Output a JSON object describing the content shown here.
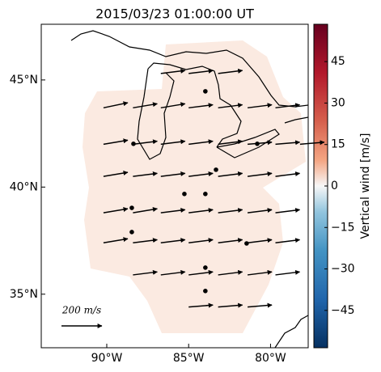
{
  "chart_data": {
    "type": "vector-map",
    "title": "2015/03/23 01:00:00 UT",
    "xlim": [
      -94,
      -77.7
    ],
    "ylim": [
      32.5,
      47.6
    ],
    "xticks": [
      {
        "value": -90,
        "label": "90°W"
      },
      {
        "value": -85,
        "label": "85°W"
      },
      {
        "value": -80,
        "label": "80°W"
      }
    ],
    "yticks": [
      {
        "value": 35,
        "label": "35°N"
      },
      {
        "value": 40,
        "label": "40°N"
      },
      {
        "value": 45,
        "label": "45°N"
      }
    ],
    "vectors": {
      "color": "#000000",
      "lon": [
        -86.7,
        -85.0,
        -83.2,
        -90.2,
        -88.4,
        -86.7,
        -85.0,
        -83.2,
        -81.4,
        -79.7,
        -90.2,
        -88.4,
        -86.7,
        -85.0,
        -83.2,
        -81.4,
        -79.7,
        -78.2,
        -90.2,
        -88.4,
        -86.7,
        -85.0,
        -83.2,
        -81.4,
        -79.7,
        -90.2,
        -88.4,
        -86.7,
        -85.0,
        -83.2,
        -81.4,
        -79.7,
        -90.2,
        -88.4,
        -86.7,
        -85.0,
        -83.2,
        -81.4,
        -79.7,
        -88.4,
        -86.7,
        -85.0,
        -83.2,
        -81.4,
        -79.7,
        -85.0,
        -83.2,
        -81.4
      ],
      "lat": [
        45.3,
        45.3,
        45.3,
        43.7,
        43.7,
        43.7,
        43.7,
        43.7,
        43.7,
        43.7,
        42.0,
        42.0,
        42.0,
        42.0,
        42.0,
        42.0,
        42.0,
        42.0,
        40.5,
        40.5,
        40.5,
        40.5,
        40.5,
        40.5,
        40.5,
        38.8,
        38.8,
        38.8,
        38.8,
        38.8,
        38.8,
        38.8,
        37.4,
        37.4,
        37.4,
        37.4,
        37.4,
        37.4,
        37.4,
        35.9,
        35.9,
        35.9,
        35.9,
        35.9,
        35.9,
        34.4,
        34.4,
        34.4
      ],
      "u": [
        120,
        120,
        120,
        120,
        120,
        120,
        120,
        120,
        120,
        120,
        120,
        120,
        120,
        120,
        120,
        120,
        120,
        120,
        120,
        120,
        120,
        120,
        120,
        120,
        120,
        120,
        120,
        120,
        120,
        120,
        120,
        120,
        120,
        120,
        120,
        120,
        120,
        120,
        120,
        120,
        120,
        120,
        120,
        120,
        120,
        120,
        120,
        120
      ],
      "v": [
        15,
        15,
        15,
        25,
        20,
        20,
        15,
        15,
        15,
        15,
        20,
        15,
        15,
        15,
        15,
        10,
        10,
        10,
        20,
        15,
        15,
        15,
        15,
        15,
        15,
        20,
        20,
        15,
        15,
        15,
        15,
        15,
        20,
        15,
        15,
        15,
        15,
        15,
        15,
        15,
        15,
        15,
        15,
        15,
        15,
        10,
        10,
        10
      ]
    },
    "stations": {
      "color": "#000000",
      "lon": [
        -83.98,
        -88.37,
        -80.81,
        -83.33,
        -85.26,
        -83.98,
        -88.47,
        -88.47,
        -81.46,
        -83.98,
        -83.98
      ],
      "lat": [
        44.47,
        42.02,
        42.02,
        40.81,
        39.68,
        39.68,
        39.03,
        37.9,
        37.37,
        36.24,
        35.15
      ]
    },
    "quiver_key": {
      "value": 200,
      "label": "200 m/s"
    },
    "colorbar": {
      "label": "Vertical wind [m/s]",
      "lim": [
        -58.5,
        58.5
      ],
      "ticks": [
        {
          "value": -45,
          "label": "−45"
        },
        {
          "value": -30,
          "label": "−30"
        },
        {
          "value": -15,
          "label": "−15"
        },
        0,
        15,
        30,
        45
      ]
    }
  }
}
